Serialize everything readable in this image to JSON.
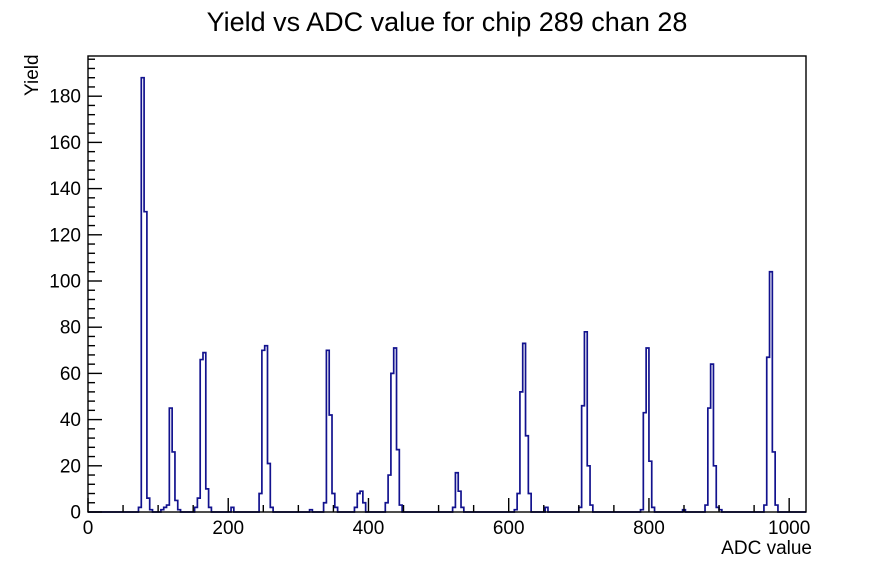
{
  "chart": {
    "title": "Yield vs ADC value for chip 289 chan 28"
  },
  "colors": {
    "background": "#ffffff",
    "axis": "#000000",
    "bar": "#12128e"
  },
  "chart_data": {
    "type": "bar",
    "title": "Yield vs ADC value for chip 289 chan 28",
    "xlabel": "ADC value",
    "ylabel": "Yield",
    "xlim": [
      0,
      1024
    ],
    "ylim": [
      0,
      197.4
    ],
    "x_major_ticks": [
      0,
      200,
      400,
      600,
      800,
      1000
    ],
    "x_minor_step": 50,
    "y_major_ticks": [
      0,
      20,
      40,
      60,
      80,
      100,
      120,
      140,
      160,
      180
    ],
    "y_minor_step": 4,
    "grid": false,
    "legend": false,
    "bar_color": "#12128e",
    "bin_width_adc": 4,
    "bins_adc_yield": [
      [
        72,
        2
      ],
      [
        76,
        188
      ],
      [
        80,
        130
      ],
      [
        84,
        6
      ],
      [
        88,
        1
      ],
      [
        104,
        1
      ],
      [
        108,
        2
      ],
      [
        112,
        3
      ],
      [
        116,
        45
      ],
      [
        120,
        26
      ],
      [
        124,
        5
      ],
      [
        128,
        1
      ],
      [
        152,
        2
      ],
      [
        156,
        6
      ],
      [
        160,
        66
      ],
      [
        164,
        69
      ],
      [
        168,
        10
      ],
      [
        172,
        2
      ],
      [
        204,
        2
      ],
      [
        244,
        8
      ],
      [
        248,
        70
      ],
      [
        252,
        72
      ],
      [
        256,
        21
      ],
      [
        260,
        2
      ],
      [
        316,
        1
      ],
      [
        336,
        4
      ],
      [
        340,
        70
      ],
      [
        344,
        42
      ],
      [
        348,
        8
      ],
      [
        352,
        2
      ],
      [
        380,
        2
      ],
      [
        384,
        8
      ],
      [
        388,
        9
      ],
      [
        392,
        4
      ],
      [
        424,
        4
      ],
      [
        428,
        16
      ],
      [
        432,
        60
      ],
      [
        436,
        71
      ],
      [
        440,
        27
      ],
      [
        444,
        3
      ],
      [
        520,
        2
      ],
      [
        524,
        17
      ],
      [
        528,
        9
      ],
      [
        532,
        2
      ],
      [
        608,
        1
      ],
      [
        612,
        8
      ],
      [
        616,
        52
      ],
      [
        620,
        73
      ],
      [
        624,
        33
      ],
      [
        628,
        8
      ],
      [
        652,
        2
      ],
      [
        700,
        2
      ],
      [
        704,
        46
      ],
      [
        708,
        78
      ],
      [
        712,
        20
      ],
      [
        716,
        3
      ],
      [
        788,
        1
      ],
      [
        792,
        43
      ],
      [
        796,
        71
      ],
      [
        800,
        22
      ],
      [
        804,
        2
      ],
      [
        848,
        1
      ],
      [
        880,
        3
      ],
      [
        884,
        45
      ],
      [
        888,
        64
      ],
      [
        892,
        20
      ],
      [
        896,
        2
      ],
      [
        900,
        1
      ],
      [
        964,
        3
      ],
      [
        968,
        67
      ],
      [
        972,
        104
      ],
      [
        976,
        26
      ],
      [
        980,
        3
      ]
    ]
  }
}
